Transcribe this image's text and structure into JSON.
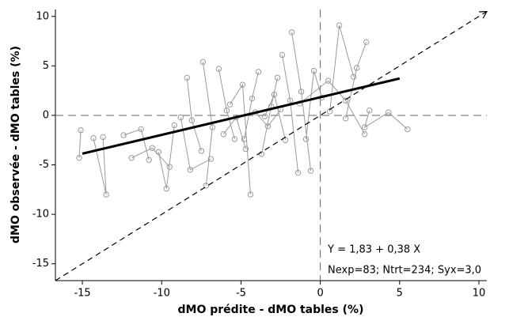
{
  "chart_data": {
    "type": "scatter",
    "xlabel": "dMO prédite - dMO tables (%)",
    "ylabel": "dMO observée - dMO tables (%)",
    "xlim": [
      -16.7,
      10.5
    ],
    "ylim": [
      -16.7,
      10.7
    ],
    "xticks": [
      -15,
      -10,
      -5,
      0,
      5,
      10
    ],
    "yticks": [
      10,
      5,
      0,
      -5,
      -10,
      -15
    ],
    "hlines": [
      0
    ],
    "vlines": [
      0
    ],
    "annotations": [
      "Y = 1,83 + 0,38 X",
      "Nexp=83; Ntrt=234; Syx=3,0"
    ],
    "series": [
      {
        "style": "markers-connected",
        "color": "#9a9a9a",
        "x": [
          -15.1,
          -15.2,
          null,
          -14.3,
          -13.5,
          -13.7,
          null,
          -12.4,
          -11.3,
          -10.8,
          null,
          -10.2,
          -9.7,
          -9.2,
          null,
          -8.4,
          -8.1,
          -7.5,
          null,
          -7.4,
          -6.8,
          -7.2,
          null,
          -6.4,
          -5.9,
          -5.4,
          null,
          -5.7,
          -4.9,
          -4.4,
          null,
          -4.8,
          -4.3,
          -3.9,
          null,
          -3.7,
          -3.1,
          -2.7,
          null,
          -3.5,
          -2.9,
          -2.2,
          null,
          -2.4,
          -1.9,
          -1.4,
          null,
          -1.8,
          -1.2,
          -0.6,
          null,
          -0.9,
          -0.4,
          0.1,
          null,
          0.6,
          1.2,
          2.1,
          null,
          1.6,
          2.3,
          2.9,
          null,
          3.1,
          2.8,
          4.3,
          5.5,
          null,
          -11.9,
          -10.6,
          -9.5,
          null,
          -8.8,
          -8.2,
          -6.9,
          null,
          -1.3,
          0.5,
          1.6,
          2.8,
          null,
          -4.1,
          -3.3,
          -2.5,
          null,
          -6.1,
          -5.3,
          -4.7
        ],
        "values": [
          -1.5,
          -4.3,
          null,
          -2.3,
          -8,
          -2.2,
          null,
          -2,
          -1.4,
          -4.5,
          null,
          -3.7,
          -7.4,
          -1,
          null,
          3.8,
          -0.5,
          -3.6,
          null,
          5.4,
          -1.2,
          -7.1,
          null,
          4.7,
          0.5,
          -2.4,
          null,
          1.1,
          3.1,
          -8,
          null,
          -2.4,
          1.7,
          4.4,
          null,
          -3.9,
          0.9,
          3.8,
          null,
          -0.1,
          2.1,
          -2.5,
          null,
          6.1,
          1.5,
          -5.8,
          null,
          8.4,
          2.4,
          -5.6,
          null,
          -2.4,
          4.5,
          1.8,
          null,
          0.4,
          9.1,
          3.9,
          null,
          -0.3,
          4.8,
          7.4,
          null,
          0.5,
          -1.2,
          0.3,
          -1.4,
          null,
          -4.3,
          -3.3,
          -5.2,
          null,
          -0.2,
          -5.5,
          -4.4,
          null,
          1.2,
          3.5,
          1.5,
          -1.9,
          null,
          0.3,
          -1.1,
          0.6,
          null,
          -1.9,
          -0.2,
          -3.4
        ]
      },
      {
        "style": "thick-line",
        "color": "#000000",
        "x": [
          -15,
          5
        ],
        "values": [
          -3.87,
          3.73
        ]
      },
      {
        "style": "dashed-arrow",
        "color": "#000000",
        "x": [
          -16.7,
          10.5
        ],
        "values": [
          -16.7,
          10.5
        ]
      }
    ]
  }
}
